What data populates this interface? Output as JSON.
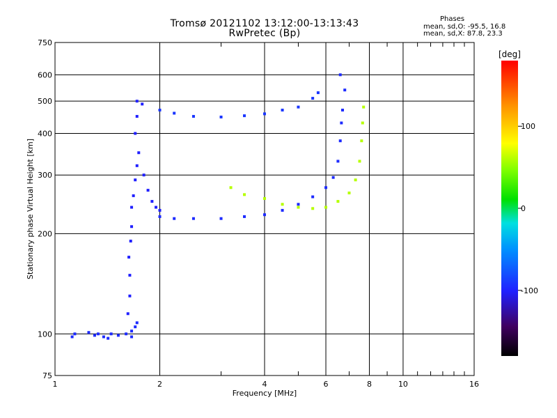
{
  "chart_data": {
    "type": "scatter",
    "title": "Tromsø 20121102 13:12:00-13:13:43",
    "subtitle": "RwPretec (Bp)",
    "xlabel": "Frequency [MHz]",
    "ylabel": "Stationary phase Virtual Height [km]",
    "xscale": "log",
    "yscale": "log",
    "xlim": [
      1,
      16
    ],
    "ylim": [
      75,
      750
    ],
    "x_ticks": [
      1,
      2,
      4,
      6,
      8,
      10,
      16
    ],
    "x_tick_labels": [
      "1",
      "2",
      "4",
      "6",
      "8",
      "10",
      "16"
    ],
    "y_ticks": [
      75,
      100,
      200,
      300,
      400,
      500,
      600,
      750
    ],
    "y_tick_labels": [
      "75",
      "100",
      "200",
      "300",
      "400",
      "500",
      "600",
      "750"
    ],
    "grid": true,
    "stats": {
      "heading": "Phases",
      "line1": "mean, sd,O: -95.5, 16.8",
      "line2": "mean, sd,X:  87.8, 23.3"
    },
    "colorbar": {
      "label": "[deg]",
      "range": [
        -180,
        180
      ],
      "ticks": [
        100,
        0,
        -100
      ],
      "tick_labels": [
        "100",
        "0",
        "-100"
      ]
    },
    "series": [
      {
        "points": [
          [
            1.12,
            98
          ],
          [
            1.14,
            100
          ],
          [
            1.25,
            101
          ],
          [
            1.3,
            99
          ],
          [
            1.38,
            98
          ],
          [
            1.45,
            100
          ],
          [
            1.52,
            99
          ],
          [
            1.6,
            100
          ],
          [
            1.66,
            102
          ],
          [
            1.7,
            105
          ],
          [
            1.72,
            108
          ],
          [
            1.66,
            98
          ],
          [
            1.42,
            97
          ],
          [
            1.33,
            100
          ]
        ],
        "phase": -105
      },
      {
        "points": [
          [
            1.62,
            115
          ],
          [
            1.64,
            130
          ],
          [
            1.64,
            150
          ],
          [
            1.63,
            170
          ],
          [
            1.65,
            190
          ],
          [
            1.66,
            210
          ],
          [
            1.66,
            240
          ],
          [
            1.68,
            260
          ],
          [
            1.7,
            290
          ],
          [
            1.72,
            320
          ],
          [
            1.74,
            350
          ],
          [
            1.7,
            400
          ],
          [
            1.72,
            450
          ],
          [
            1.72,
            500
          ],
          [
            1.78,
            490
          ],
          [
            1.8,
            300
          ],
          [
            1.85,
            270
          ],
          [
            1.9,
            250
          ],
          [
            1.95,
            240
          ],
          [
            2.0,
            235
          ]
        ],
        "phase": -110
      },
      {
        "points": [
          [
            2.0,
            225
          ],
          [
            2.2,
            222
          ],
          [
            2.5,
            222
          ],
          [
            3.0,
            222
          ],
          [
            3.5,
            225
          ],
          [
            4.0,
            228
          ],
          [
            4.5,
            235
          ],
          [
            5.0,
            245
          ],
          [
            5.5,
            258
          ],
          [
            6.0,
            275
          ],
          [
            6.3,
            295
          ],
          [
            6.5,
            330
          ],
          [
            6.6,
            380
          ],
          [
            6.65,
            430
          ],
          [
            6.7,
            470
          ],
          [
            6.8,
            540
          ],
          [
            6.6,
            600
          ]
        ],
        "phase": -105
      },
      {
        "points": [
          [
            2.0,
            470
          ],
          [
            2.2,
            460
          ],
          [
            2.5,
            450
          ],
          [
            3.0,
            448
          ],
          [
            3.5,
            452
          ],
          [
            4.0,
            458
          ],
          [
            4.5,
            470
          ],
          [
            5.0,
            480
          ],
          [
            5.5,
            510
          ],
          [
            5.7,
            530
          ]
        ],
        "phase": -100
      },
      {
        "points": [
          [
            3.2,
            275
          ],
          [
            3.5,
            262
          ],
          [
            4.0,
            255
          ],
          [
            4.5,
            245
          ],
          [
            5.0,
            240
          ],
          [
            5.5,
            238
          ],
          [
            6.0,
            240
          ],
          [
            6.5,
            250
          ],
          [
            7.0,
            265
          ],
          [
            7.3,
            290
          ],
          [
            7.5,
            330
          ],
          [
            7.6,
            380
          ],
          [
            7.65,
            430
          ],
          [
            7.7,
            480
          ]
        ],
        "phase": 60
      }
    ]
  }
}
